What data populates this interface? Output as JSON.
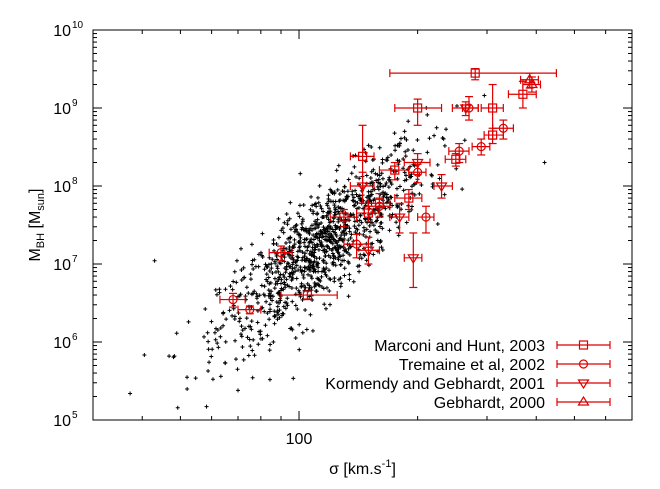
{
  "chart_data": {
    "type": "scatter",
    "title": "",
    "xlabel": {
      "main": "σ [km.s",
      "sup": "-1",
      "close": "]"
    },
    "ylabel": {
      "main": "M",
      "sub": "BH",
      "rest": " [M",
      "sub2": "sun",
      "close": "]"
    },
    "x_scale": "log",
    "y_scale": "log",
    "xlim": [
      30,
      700
    ],
    "ylim": [
      100000,
      10000000000
    ],
    "x_ticks": [
      {
        "value": 100,
        "label": "100"
      }
    ],
    "y_ticks": [
      {
        "value": 100000,
        "base": "10",
        "exp": "5"
      },
      {
        "value": 1000000,
        "base": "10",
        "exp": "6"
      },
      {
        "value": 10000000,
        "base": "10",
        "exp": "7"
      },
      {
        "value": 100000000,
        "base": "10",
        "exp": "8"
      },
      {
        "value": 1000000000,
        "base": "10",
        "exp": "9"
      },
      {
        "value": 10000000000,
        "base": "10",
        "exp": "10"
      }
    ],
    "legend_position": "bottom-right",
    "background_sample": {
      "name": "",
      "color": "#000000",
      "marker": "plus",
      "count": 1100,
      "log_sigma_mean": 2.06,
      "log_sigma_sd": 0.13,
      "log_mass_relation": "log M = 7.0 + 4.0 (log sigma - 2.0)",
      "log_mass_scatter_sd": 0.35,
      "notable_points": [
        [
          43,
          11000000
        ],
        [
          52,
          250000
        ],
        [
          70,
          240000
        ],
        [
          120,
          90000000
        ],
        [
          420,
          200000000
        ]
      ]
    },
    "series": [
      {
        "name": "Marconi and Hunt, 2003",
        "marker": "square",
        "color": "#dd0000",
        "points": [
          {
            "x": 280,
            "y": 2800000000,
            "xerr": [
              170,
              450
            ],
            "yerr": [
              2300000000,
              3200000000
            ]
          },
          {
            "x": 200,
            "y": 1000000000,
            "xerr": [
              175,
              230
            ],
            "yerr": [
              600000000,
              1300000000
            ]
          },
          {
            "x": 310,
            "y": 1000000000,
            "xerr": [
              290,
              330
            ],
            "yerr": [
              400000000,
              2000000000
            ]
          },
          {
            "x": 370,
            "y": 1500000000,
            "xerr": [
              340,
              400
            ],
            "yerr": [
              1000000000,
              2200000000
            ]
          },
          {
            "x": 145,
            "y": 240000000,
            "xerr": [
              135,
              155
            ],
            "yerr": [
              100000000,
              600000000
            ]
          },
          {
            "x": 175,
            "y": 160000000,
            "xerr": [
              160,
              190
            ],
            "yerr": [
              120000000,
              200000000
            ]
          },
          {
            "x": 130,
            "y": 40000000,
            "xerr": [
              120,
              140
            ],
            "yerr": [
              30000000,
              50000000
            ]
          },
          {
            "x": 150,
            "y": 45000000,
            "xerr": [
              140,
              160
            ],
            "yerr": [
              35000000,
              55000000
            ]
          },
          {
            "x": 105,
            "y": 4000000,
            "xerr": [
              90,
              125
            ],
            "yerr": [
              3500000,
              4500000
            ]
          },
          {
            "x": 250,
            "y": 220000000,
            "xerr": [
              235,
              265
            ],
            "yerr": [
              180000000,
              260000000
            ]
          },
          {
            "x": 310,
            "y": 450000000,
            "xerr": [
              295,
              330
            ],
            "yerr": [
              350000000,
              550000000
            ]
          },
          {
            "x": 190,
            "y": 70000000,
            "xerr": [
              175,
              205
            ],
            "yerr": [
              50000000,
              90000000
            ]
          },
          {
            "x": 160,
            "y": 60000000,
            "xerr": [
              150,
              170
            ],
            "yerr": [
              40000000,
              80000000
            ]
          }
        ]
      },
      {
        "name": "Tremaine et al, 2002",
        "marker": "circle",
        "color": "#dd0000",
        "points": [
          {
            "x": 270,
            "y": 1000000000,
            "xerr": [
              260,
              285
            ],
            "yerr": [
              700000000,
              1400000000
            ]
          },
          {
            "x": 330,
            "y": 550000000,
            "xerr": [
              310,
              350
            ],
            "yerr": [
              400000000,
              700000000
            ]
          },
          {
            "x": 290,
            "y": 320000000,
            "xerr": [
              275,
              305
            ],
            "yerr": [
              250000000,
              400000000
            ]
          },
          {
            "x": 255,
            "y": 280000000,
            "xerr": [
              240,
              270
            ],
            "yerr": [
              200000000,
              350000000
            ]
          },
          {
            "x": 200,
            "y": 150000000,
            "xerr": [
              190,
              210
            ],
            "yerr": [
              110000000,
              190000000
            ]
          },
          {
            "x": 210,
            "y": 40000000,
            "xerr": [
              200,
              220
            ],
            "yerr": [
              25000000,
              55000000
            ]
          },
          {
            "x": 160,
            "y": 55000000,
            "xerr": [
              150,
              170
            ],
            "yerr": [
              40000000,
              70000000
            ]
          },
          {
            "x": 140,
            "y": 18000000,
            "xerr": [
              130,
              150
            ],
            "yerr": [
              12000000,
              24000000
            ]
          },
          {
            "x": 90,
            "y": 14000000,
            "xerr": [
              84,
              96
            ],
            "yerr": [
              11000000,
              17000000
            ]
          },
          {
            "x": 68,
            "y": 3500000,
            "xerr": [
              63,
              73
            ],
            "yerr": [
              2800000,
              4200000
            ]
          },
          {
            "x": 75,
            "y": 2600000,
            "xerr": [
              70,
              80
            ],
            "yerr": [
              2300000,
              2900000
            ]
          }
        ]
      },
      {
        "name": "Kormendy and Gebhardt, 2001",
        "marker": "triangle-down",
        "color": "#dd0000",
        "points": [
          {
            "x": 265,
            "y": 1000000000,
            "xerr": [
              245,
              285
            ],
            "yerr": [
              800000000,
              1200000000
            ]
          },
          {
            "x": 200,
            "y": 200000000,
            "xerr": [
              185,
              215
            ],
            "yerr": [
              140000000,
              260000000
            ]
          },
          {
            "x": 145,
            "y": 100000000,
            "xerr": [
              135,
              155
            ],
            "yerr": [
              60000000,
              150000000
            ]
          },
          {
            "x": 180,
            "y": 40000000,
            "xerr": [
              170,
              190
            ],
            "yerr": [
              25000000,
              60000000
            ]
          },
          {
            "x": 195,
            "y": 12000000,
            "xerr": [
              185,
              205
            ],
            "yerr": [
              5000000,
              25000000
            ]
          },
          {
            "x": 150,
            "y": 15000000,
            "xerr": [
              140,
              160
            ],
            "yerr": [
              10000000,
              22000000
            ]
          },
          {
            "x": 230,
            "y": 100000000,
            "xerr": [
              220,
              245
            ],
            "yerr": [
              70000000,
              140000000
            ]
          }
        ]
      },
      {
        "name": "Gebhardt, 2000",
        "marker": "triangle-up",
        "color": "#dd0000",
        "points": [
          {
            "x": 385,
            "y": 2300000000,
            "xerr": [
              365,
              405
            ],
            "yerr": [
              1800000000,
              2800000000
            ]
          },
          {
            "x": 390,
            "y": 2000000000,
            "xerr": [
              370,
              410
            ],
            "yerr": [
              1600000000,
              2500000000
            ]
          }
        ]
      }
    ]
  }
}
